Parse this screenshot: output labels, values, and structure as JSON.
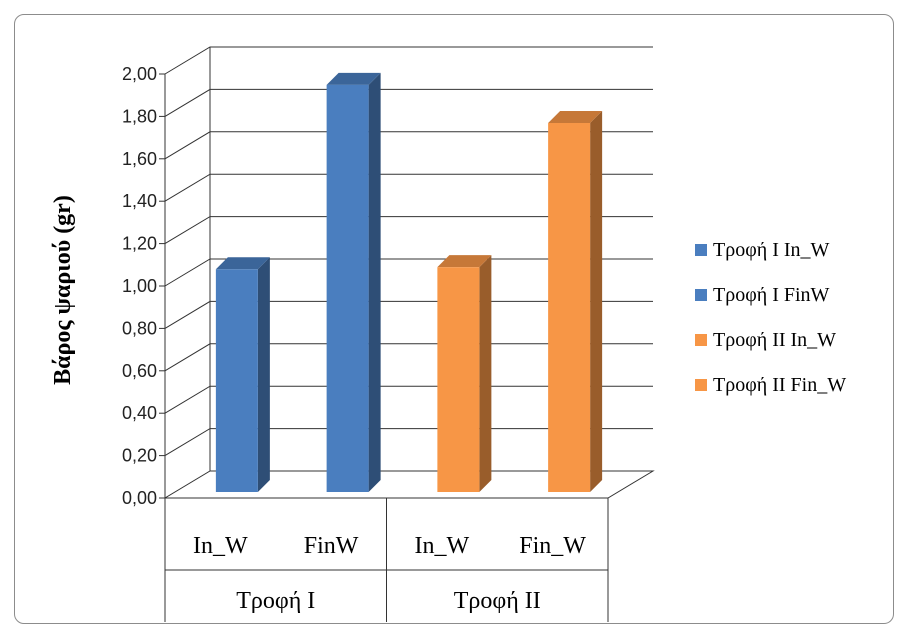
{
  "chart_data": {
    "type": "bar",
    "ylabel": "Βάρος ψαριού (gr)",
    "ylim": [
      0,
      2.0
    ],
    "y_ticks": [
      "0,00",
      "0,20",
      "0,40",
      "0,60",
      "0,80",
      "1,00",
      "1,20",
      "1,40",
      "1,60",
      "1,80",
      "2,00"
    ],
    "grid": true,
    "legend_position": "right",
    "groups": [
      "Τροφή Ι",
      "Τροφή ΙΙ"
    ],
    "categories": [
      "In_W",
      "FinW",
      "In_W",
      "Fin_W"
    ],
    "series": [
      {
        "name": "Τροφή Ι In_W",
        "values": [
          1.06,
          null,
          null,
          null
        ],
        "color": "#4a7ebf"
      },
      {
        "name": "Τροφή Ι FinW",
        "values": [
          null,
          1.93,
          null,
          null
        ],
        "color": "#4a7ebf"
      },
      {
        "name": "Τροφή ΙΙ In_W",
        "values": [
          null,
          null,
          1.07,
          null
        ],
        "color": "#f79646"
      },
      {
        "name": "Τροφή ΙΙ Fin_W",
        "values": [
          null,
          null,
          null,
          1.75
        ],
        "color": "#f79646"
      }
    ]
  }
}
